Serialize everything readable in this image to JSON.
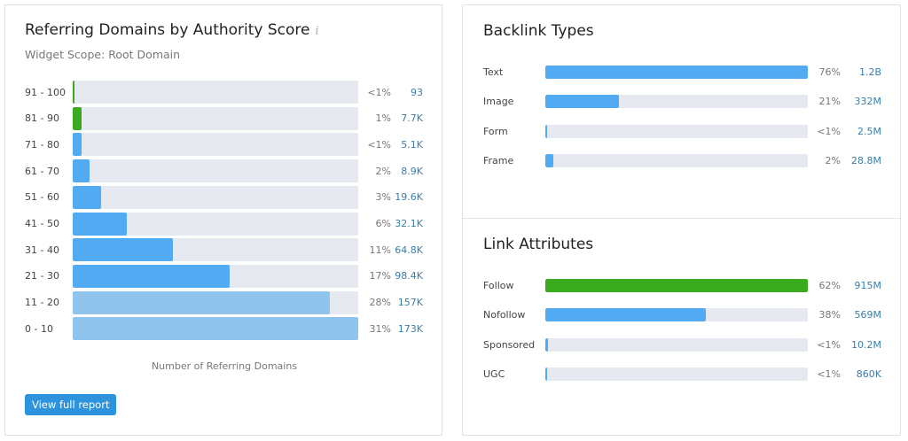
{
  "colors": {
    "green": "#3aaa1e",
    "blue": "#52aaf2",
    "light_blue": "#8fc4ec",
    "track": "#e6e9ef",
    "value": "#3a7ea8",
    "button": "#2d93dd"
  },
  "left": {
    "title": "Referring Domains by Authority Score",
    "info_icon": "info-icon",
    "subtitle": "Widget Scope: Root Domain",
    "axis_label": "Number of Referring Domains",
    "button": "View full report",
    "rows": [
      {
        "label": "91 - 100",
        "pct": "<1%",
        "value": "93",
        "fill": 0.006,
        "color": "green"
      },
      {
        "label": "81 - 90",
        "pct": "1%",
        "value": "7.7K",
        "fill": 0.03,
        "color": "green"
      },
      {
        "label": "71 - 80",
        "pct": "<1%",
        "value": "5.1K",
        "fill": 0.03,
        "color": "blue"
      },
      {
        "label": "61 - 70",
        "pct": "2%",
        "value": "8.9K",
        "fill": 0.06,
        "color": "blue"
      },
      {
        "label": "51 - 60",
        "pct": "3%",
        "value": "19.6K",
        "fill": 0.1,
        "color": "blue"
      },
      {
        "label": "41 - 50",
        "pct": "6%",
        "value": "32.1K",
        "fill": 0.19,
        "color": "blue"
      },
      {
        "label": "31 - 40",
        "pct": "11%",
        "value": "64.8K",
        "fill": 0.35,
        "color": "blue"
      },
      {
        "label": "21 - 30",
        "pct": "17%",
        "value": "98.4K",
        "fill": 0.55,
        "color": "blue"
      },
      {
        "label": "11 - 20",
        "pct": "28%",
        "value": "157K",
        "fill": 0.9,
        "color": "light_blue"
      },
      {
        "label": "0 - 10",
        "pct": "31%",
        "value": "173K",
        "fill": 1.0,
        "color": "light_blue"
      }
    ]
  },
  "backlink_types": {
    "title": "Backlink Types",
    "rows": [
      {
        "label": "Text",
        "pct": "76%",
        "value": "1.2B",
        "fill": 1.0,
        "color": "blue"
      },
      {
        "label": "Image",
        "pct": "21%",
        "value": "332M",
        "fill": 0.28,
        "color": "blue"
      },
      {
        "label": "Form",
        "pct": "<1%",
        "value": "2.5M",
        "fill": 0.006,
        "color": "blue"
      },
      {
        "label": "Frame",
        "pct": "2%",
        "value": "28.8M",
        "fill": 0.03,
        "color": "blue"
      }
    ]
  },
  "link_attributes": {
    "title": "Link Attributes",
    "rows": [
      {
        "label": "Follow",
        "pct": "62%",
        "value": "915M",
        "fill": 1.0,
        "color": "green"
      },
      {
        "label": "Nofollow",
        "pct": "38%",
        "value": "569M",
        "fill": 0.61,
        "color": "blue"
      },
      {
        "label": "Sponsored",
        "pct": "<1%",
        "value": "10.2M",
        "fill": 0.01,
        "color": "blue"
      },
      {
        "label": "UGC",
        "pct": "<1%",
        "value": "860K",
        "fill": 0.006,
        "color": "blue"
      }
    ]
  }
}
